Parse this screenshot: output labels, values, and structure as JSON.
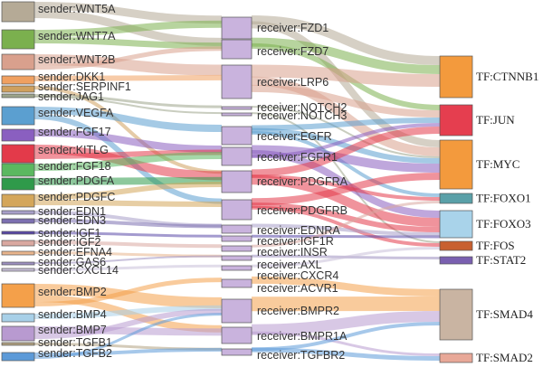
{
  "diagram": {
    "type": "sankey",
    "senders": [
      {
        "label": "sender:WNT5A",
        "color": "#b5aa96"
      },
      {
        "label": "sender:WNT7A",
        "color": "#7bb04e"
      },
      {
        "label": "sender:WNT2B",
        "color": "#d9a08d"
      },
      {
        "label": "sender:DKK1",
        "color": "#f0a060"
      },
      {
        "label": "sender:SERPINF1",
        "color": "#cfa05e"
      },
      {
        "label": "sender:JAG1",
        "color": "#9ca48a"
      },
      {
        "label": "sender:VEGFA",
        "color": "#5b9fd0"
      },
      {
        "label": "sender:FGF17",
        "color": "#8a5fc0"
      },
      {
        "label": "sender:KITLG",
        "color": "#e33a4a"
      },
      {
        "label": "sender:FGF18",
        "color": "#5bb860"
      },
      {
        "label": "sender:PDGFA",
        "color": "#2f9a4a"
      },
      {
        "label": "sender:PDGFC",
        "color": "#d4a65a"
      },
      {
        "label": "sender:EDN1",
        "color": "#a89fc8"
      },
      {
        "label": "sender:EDN3",
        "color": "#7c6fb0"
      },
      {
        "label": "sender:IGF1",
        "color": "#5a48a8"
      },
      {
        "label": "sender:IGF2",
        "color": "#d9a8a0"
      },
      {
        "label": "sender:EFNA4",
        "color": "#e8b48c"
      },
      {
        "label": "sender:GAS6",
        "color": "#9c8fc0"
      },
      {
        "label": "sender:CXCL14",
        "color": "#c8c0d8"
      },
      {
        "label": "sender:BMP2",
        "color": "#f4a04a"
      },
      {
        "label": "sender:BMP4",
        "color": "#a8d0e8"
      },
      {
        "label": "sender:BMP7",
        "color": "#b89ad0"
      },
      {
        "label": "sender:TGFB1",
        "color": "#b0a080"
      },
      {
        "label": "sender:TGFB2",
        "color": "#5c9ad8"
      }
    ],
    "receivers": [
      {
        "label": "receiver:FZD1",
        "color": "#c9b3dd"
      },
      {
        "label": "receiver:FZD7",
        "color": "#c9b3dd"
      },
      {
        "label": "receiver:LRP6",
        "color": "#c9b3dd"
      },
      {
        "label": "receiver:NOTCH2",
        "color": "#c9b3dd"
      },
      {
        "label": "receiver:NOTCH3",
        "color": "#c9b3dd"
      },
      {
        "label": "receiver:EGFR",
        "color": "#c9b3dd"
      },
      {
        "label": "receiver:FGFR1",
        "color": "#c9b3dd"
      },
      {
        "label": "receiver:PDGFRA",
        "color": "#c9b3dd"
      },
      {
        "label": "receiver:PDGFRB",
        "color": "#c9b3dd"
      },
      {
        "label": "receiver:EDNRA",
        "color": "#c9b3dd"
      },
      {
        "label": "receiver:IGF1R",
        "color": "#c9b3dd"
      },
      {
        "label": "receiver:INSR",
        "color": "#c9b3dd"
      },
      {
        "label": "receiver:AXL",
        "color": "#c9b3dd"
      },
      {
        "label": "receiver:CXCR4",
        "color": "#c9b3dd"
      },
      {
        "label": "receiver:ACVR1",
        "color": "#c9b3dd"
      },
      {
        "label": "receiver:BMPR2",
        "color": "#c9b3dd"
      },
      {
        "label": "receiver:BMPR1A",
        "color": "#c9b3dd"
      },
      {
        "label": "receiver:TGFBR2",
        "color": "#c9b3dd"
      }
    ],
    "tfs": [
      {
        "label": "TF:CTNNB1",
        "color": "#f39a3d"
      },
      {
        "label": "TF:JUN",
        "color": "#e53e4f"
      },
      {
        "label": "TF:MYC",
        "color": "#f39a3d"
      },
      {
        "label": "TF:FOXO1",
        "color": "#5aa0a8"
      },
      {
        "label": "TF:FOXO3",
        "color": "#a9d3ea"
      },
      {
        "label": "TF:FOS",
        "color": "#c86030"
      },
      {
        "label": "TF:STAT2",
        "color": "#7a60b0"
      },
      {
        "label": "TF:SMAD4",
        "color": "#c9b4a2"
      },
      {
        "label": "TF:SMAD2",
        "color": "#e8a898"
      }
    ]
  }
}
